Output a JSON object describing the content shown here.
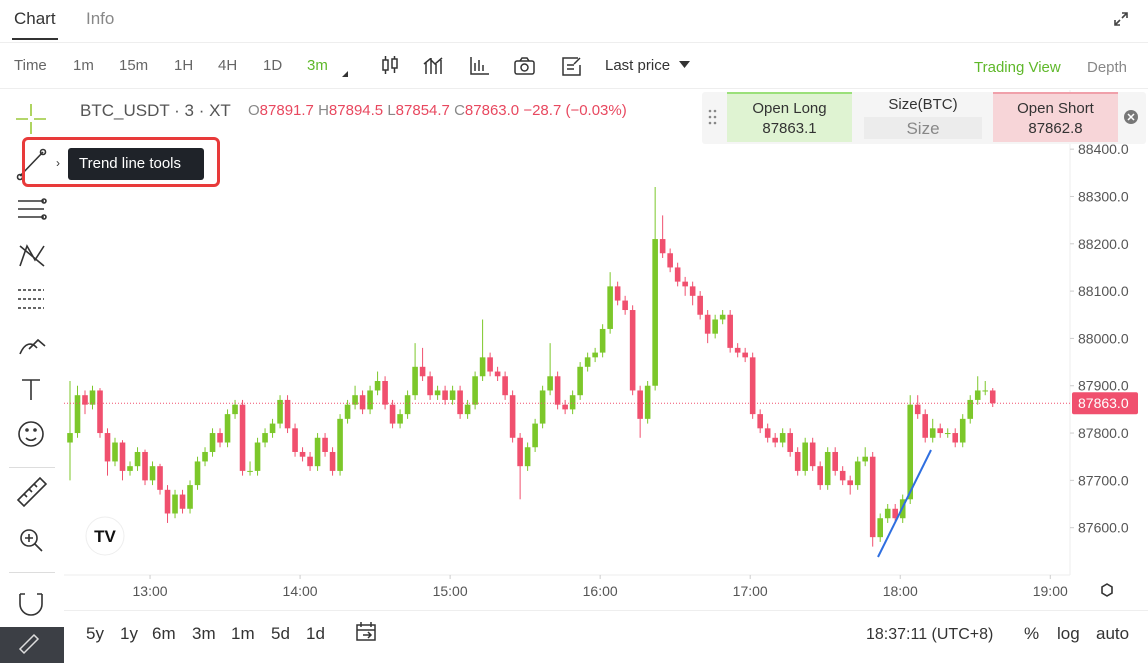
{
  "tabs": [
    "Chart",
    "Info"
  ],
  "toolbar": {
    "intervals": [
      "Time",
      "1m",
      "15m",
      "1H",
      "4H",
      "1D",
      "3m"
    ],
    "price_type": "Last price",
    "views": [
      "Trading View",
      "Depth"
    ]
  },
  "tooltip": "Trend line tools",
  "legend": {
    "symbol": "BTC_USDT · 3 · XT",
    "open": {
      "label": "O",
      "value": "87891.7"
    },
    "high": {
      "label": "H",
      "value": "87894.5"
    },
    "low": {
      "label": "L",
      "value": "87854.7"
    },
    "close": {
      "label": "C",
      "value": "87863.0"
    },
    "change": "−28.7 (−0.03%)"
  },
  "order_panel": {
    "open_long": {
      "label": "Open Long",
      "price": "87863.1"
    },
    "size": {
      "label": "Size(BTC)",
      "placeholder": "Size"
    },
    "open_short": {
      "label": "Open Short",
      "price": "87862.8"
    }
  },
  "footer": {
    "ranges": [
      "5y",
      "1y",
      "6m",
      "3m",
      "1m",
      "5d",
      "1d"
    ],
    "clock": "18:37:11 (UTC+8)",
    "scale": [
      "%",
      "log",
      "auto"
    ]
  },
  "chart_data": {
    "type": "candlestick",
    "up_color": "#7cc72a",
    "down_color": "#f0506e",
    "xlim": [
      -0.8,
      133.3
    ],
    "ylim": [
      87500,
      88525
    ],
    "xticks": [
      {
        "value": 10.67,
        "label": "13:00"
      },
      {
        "value": 30.67,
        "label": "14:00"
      },
      {
        "value": 50.67,
        "label": "15:00"
      },
      {
        "value": 70.67,
        "label": "16:00"
      },
      {
        "value": 90.67,
        "label": "17:00"
      },
      {
        "value": 110.67,
        "label": "18:00"
      },
      {
        "value": 130.67,
        "label": "19:00"
      }
    ],
    "yticks": [
      {
        "value": 87600,
        "label": "87600.0"
      },
      {
        "value": 87700,
        "label": "87700.0"
      },
      {
        "value": 87800,
        "label": "87800.0"
      },
      {
        "value": 87900,
        "label": "87900.0"
      },
      {
        "value": 88000,
        "label": "88000.0"
      },
      {
        "value": 88100,
        "label": "88100.0"
      },
      {
        "value": 88200,
        "label": "88200.0"
      },
      {
        "value": 88300,
        "label": "88300.0"
      },
      {
        "value": 88400,
        "label": "88400.0"
      }
    ],
    "last_price": {
      "value": 87863,
      "label": "87863.0"
    },
    "candles": [
      [
        87780,
        87910,
        87700,
        87800
      ],
      [
        87800,
        87900,
        87790,
        87880
      ],
      [
        87880,
        87890,
        87840,
        87860
      ],
      [
        87860,
        87900,
        87850,
        87890
      ],
      [
        87890,
        87895,
        87790,
        87800
      ],
      [
        87800,
        87810,
        87710,
        87740
      ],
      [
        87740,
        87790,
        87730,
        87780
      ],
      [
        87780,
        87785,
        87700,
        87720
      ],
      [
        87720,
        87740,
        87710,
        87730
      ],
      [
        87730,
        87770,
        87720,
        87760
      ],
      [
        87760,
        87765,
        87690,
        87700
      ],
      [
        87700,
        87740,
        87690,
        87730
      ],
      [
        87730,
        87735,
        87670,
        87680
      ],
      [
        87680,
        87690,
        87610,
        87630
      ],
      [
        87630,
        87680,
        87620,
        87670
      ],
      [
        87670,
        87680,
        87630,
        87640
      ],
      [
        87640,
        87700,
        87630,
        87690
      ],
      [
        87690,
        87750,
        87680,
        87740
      ],
      [
        87740,
        87770,
        87730,
        87760
      ],
      [
        87760,
        87810,
        87750,
        87800
      ],
      [
        87800,
        87810,
        87770,
        87780
      ],
      [
        87780,
        87850,
        87770,
        87840
      ],
      [
        87840,
        87870,
        87830,
        87860
      ],
      [
        87860,
        87870,
        87710,
        87720
      ],
      [
        87720,
        87740,
        87710,
        87720
      ],
      [
        87720,
        87790,
        87710,
        87780
      ],
      [
        87780,
        87810,
        87770,
        87800
      ],
      [
        87800,
        87830,
        87790,
        87820
      ],
      [
        87820,
        87880,
        87810,
        87870
      ],
      [
        87870,
        87880,
        87800,
        87810
      ],
      [
        87810,
        87820,
        87750,
        87760
      ],
      [
        87760,
        87770,
        87740,
        87750
      ],
      [
        87750,
        87760,
        87720,
        87730
      ],
      [
        87730,
        87800,
        87720,
        87790
      ],
      [
        87790,
        87800,
        87750,
        87760
      ],
      [
        87760,
        87770,
        87710,
        87720
      ],
      [
        87720,
        87840,
        87710,
        87830
      ],
      [
        87830,
        87870,
        87820,
        87860
      ],
      [
        87860,
        87900,
        87850,
        87880
      ],
      [
        87880,
        87890,
        87840,
        87850
      ],
      [
        87850,
        87900,
        87840,
        87890
      ],
      [
        87890,
        87930,
        87880,
        87910
      ],
      [
        87910,
        87920,
        87850,
        87860
      ],
      [
        87860,
        87870,
        87810,
        87820
      ],
      [
        87820,
        87850,
        87810,
        87840
      ],
      [
        87840,
        87890,
        87830,
        87880
      ],
      [
        87880,
        87990,
        87870,
        87940
      ],
      [
        87940,
        87980,
        87910,
        87920
      ],
      [
        87920,
        87930,
        87870,
        87880
      ],
      [
        87880,
        87900,
        87870,
        87890
      ],
      [
        87890,
        87900,
        87860,
        87870
      ],
      [
        87870,
        87900,
        87860,
        87890
      ],
      [
        87890,
        87900,
        87830,
        87840
      ],
      [
        87840,
        87870,
        87830,
        87860
      ],
      [
        87860,
        87930,
        87850,
        87920
      ],
      [
        87920,
        88040,
        87910,
        87960
      ],
      [
        87960,
        87970,
        87920,
        87930
      ],
      [
        87930,
        87940,
        87910,
        87920
      ],
      [
        87920,
        87930,
        87870,
        87880
      ],
      [
        87880,
        87890,
        87780,
        87790
      ],
      [
        87790,
        87800,
        87660,
        87730
      ],
      [
        87730,
        87780,
        87720,
        87770
      ],
      [
        87770,
        87830,
        87760,
        87820
      ],
      [
        87820,
        87900,
        87810,
        87890
      ],
      [
        87890,
        87990,
        87880,
        87920
      ],
      [
        87920,
        87930,
        87850,
        87860
      ],
      [
        87860,
        87870,
        87840,
        87850
      ],
      [
        87850,
        87890,
        87840,
        87880
      ],
      [
        87880,
        87950,
        87870,
        87940
      ],
      [
        87940,
        87970,
        87930,
        87960
      ],
      [
        87960,
        87980,
        87950,
        87970
      ],
      [
        87970,
        88030,
        87960,
        88020
      ],
      [
        88020,
        88140,
        88010,
        88110
      ],
      [
        88110,
        88120,
        88070,
        88080
      ],
      [
        88080,
        88090,
        88050,
        88060
      ],
      [
        88060,
        88070,
        87880,
        87890
      ],
      [
        87890,
        87900,
        87790,
        87830
      ],
      [
        87830,
        87910,
        87820,
        87900
      ],
      [
        87900,
        88320,
        87890,
        88210
      ],
      [
        88210,
        88260,
        88170,
        88180
      ],
      [
        88180,
        88190,
        88140,
        88150
      ],
      [
        88150,
        88160,
        88110,
        88120
      ],
      [
        88120,
        88130,
        88090,
        88110
      ],
      [
        88110,
        88120,
        88070,
        88090
      ],
      [
        88090,
        88100,
        88040,
        88050
      ],
      [
        88050,
        88060,
        87990,
        88010
      ],
      [
        88010,
        88050,
        88000,
        88040
      ],
      [
        88040,
        88060,
        88030,
        88050
      ],
      [
        88050,
        88060,
        87970,
        87980
      ],
      [
        87980,
        87990,
        87960,
        87970
      ],
      [
        87970,
        87980,
        87950,
        87960
      ],
      [
        87960,
        87970,
        87830,
        87840
      ],
      [
        87840,
        87850,
        87800,
        87810
      ],
      [
        87810,
        87820,
        87780,
        87790
      ],
      [
        87790,
        87800,
        87770,
        87780
      ],
      [
        87780,
        87810,
        87770,
        87800
      ],
      [
        87800,
        87810,
        87750,
        87760
      ],
      [
        87760,
        87770,
        87710,
        87720
      ],
      [
        87720,
        87790,
        87710,
        87780
      ],
      [
        87780,
        87790,
        87720,
        87730
      ],
      [
        87730,
        87740,
        87680,
        87690
      ],
      [
        87690,
        87770,
        87680,
        87760
      ],
      [
        87760,
        87770,
        87710,
        87720
      ],
      [
        87720,
        87730,
        87690,
        87700
      ],
      [
        87700,
        87710,
        87670,
        87690
      ],
      [
        87690,
        87750,
        87680,
        87740
      ],
      [
        87740,
        87770,
        87730,
        87750
      ],
      [
        87750,
        87760,
        87560,
        87580
      ],
      [
        87580,
        87630,
        87570,
        87620
      ],
      [
        87620,
        87650,
        87610,
        87640
      ],
      [
        87640,
        87650,
        87610,
        87620
      ],
      [
        87620,
        87670,
        87610,
        87660
      ],
      [
        87660,
        87880,
        87650,
        87860
      ],
      [
        87860,
        87880,
        87830,
        87840
      ],
      [
        87840,
        87850,
        87780,
        87790
      ],
      [
        87790,
        87830,
        87780,
        87810
      ],
      [
        87810,
        87820,
        87790,
        87800
      ],
      [
        87800,
        87810,
        87790,
        87800
      ],
      [
        87800,
        87810,
        87770,
        87780
      ],
      [
        87780,
        87840,
        87770,
        87830
      ],
      [
        87830,
        87880,
        87820,
        87870
      ],
      [
        87870,
        87920,
        87860,
        87890
      ],
      [
        87890,
        87910,
        87880,
        87890
      ],
      [
        87890,
        87895,
        87855,
        87863
      ]
    ]
  }
}
